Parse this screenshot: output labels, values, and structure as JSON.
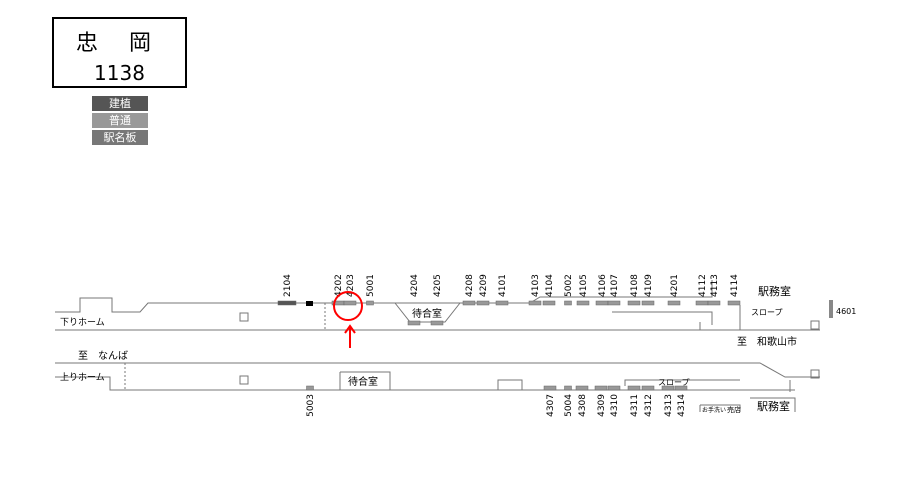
{
  "station": {
    "name": "忠 岡",
    "code": "1138"
  },
  "legend": [
    {
      "label": "建植",
      "color": "#555555"
    },
    {
      "label": "普通",
      "color": "#999999"
    },
    {
      "label": "駅名板",
      "color": "#777777"
    }
  ],
  "down_platform": {
    "label": "下りホーム",
    "waiting_room": "待合室",
    "station_office": "駅務室",
    "slope": "スロープ",
    "direction": "至　和歌山市",
    "boards": [
      "2104",
      "4202",
      "4203",
      "5001",
      "4204",
      "4205",
      "4208",
      "4209",
      "4101",
      "4103",
      "4104",
      "5002",
      "4105",
      "4106",
      "4107",
      "4108",
      "4109",
      "4201",
      "4112",
      "4113",
      "4114"
    ],
    "side_board": "4601"
  },
  "up_platform": {
    "label": "上りホーム",
    "direction": "至　なんば",
    "waiting_room": "待合室",
    "slope": "スロープ",
    "toilet": "お手洗い",
    "shop": "売店",
    "station_office": "駅務室",
    "boards": [
      "5003",
      "4307",
      "5004",
      "4308",
      "4309",
      "4310",
      "4311",
      "4312",
      "4313",
      "4314"
    ]
  },
  "highlight": {
    "board": "4203",
    "color": "#ff0000"
  }
}
